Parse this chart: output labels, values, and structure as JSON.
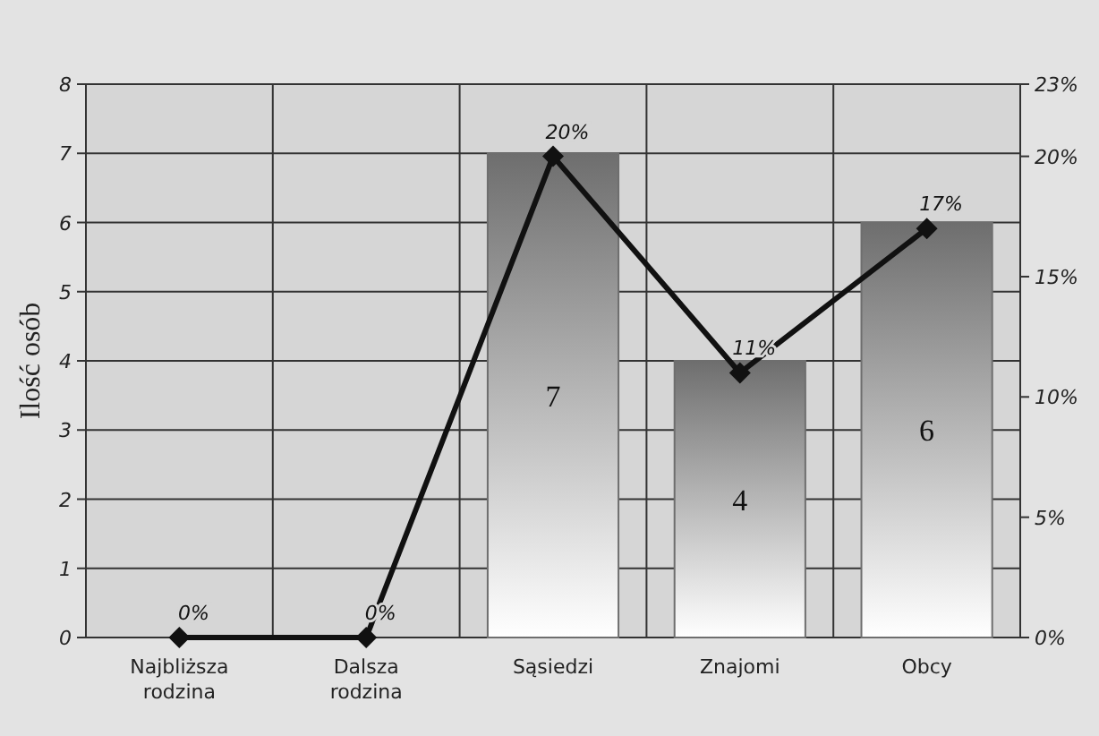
{
  "chart_data": {
    "type": "bar",
    "ylabel": "Ilość osób",
    "categories": [
      "Najbliższa\nrodzina",
      "Dalsza\nrodzina",
      "Sąsiedzi",
      "Znajomi",
      "Obcy"
    ],
    "series": [
      {
        "color": "#6e6e6e",
        "values": [
          0,
          0,
          7,
          4,
          6
        ],
        "value_labels": [
          null,
          null,
          "7",
          "4",
          "6"
        ]
      },
      {
        "type": "line",
        "axis": "y2",
        "color": "#111111",
        "values": [
          0,
          0,
          20,
          11,
          17
        ],
        "value_labels": [
          "0%",
          "0%",
          "20%",
          "11%",
          "17%"
        ],
        "marker": "diamond",
        "line_style": "solid"
      }
    ],
    "ylim": [
      0,
      8
    ],
    "yticks": [
      0,
      1,
      2,
      3,
      4,
      5,
      6,
      7,
      8
    ],
    "y2lim": [
      0,
      23
    ],
    "y2ticks": [
      {
        "value": 0,
        "label": "0%"
      },
      {
        "value": 5,
        "label": "5%"
      },
      {
        "value": 10,
        "label": "10%"
      },
      {
        "value": 15,
        "label": "15%"
      },
      {
        "value": 20,
        "label": "20%"
      },
      {
        "value": 23,
        "label": "23%"
      }
    ],
    "grid": true
  }
}
